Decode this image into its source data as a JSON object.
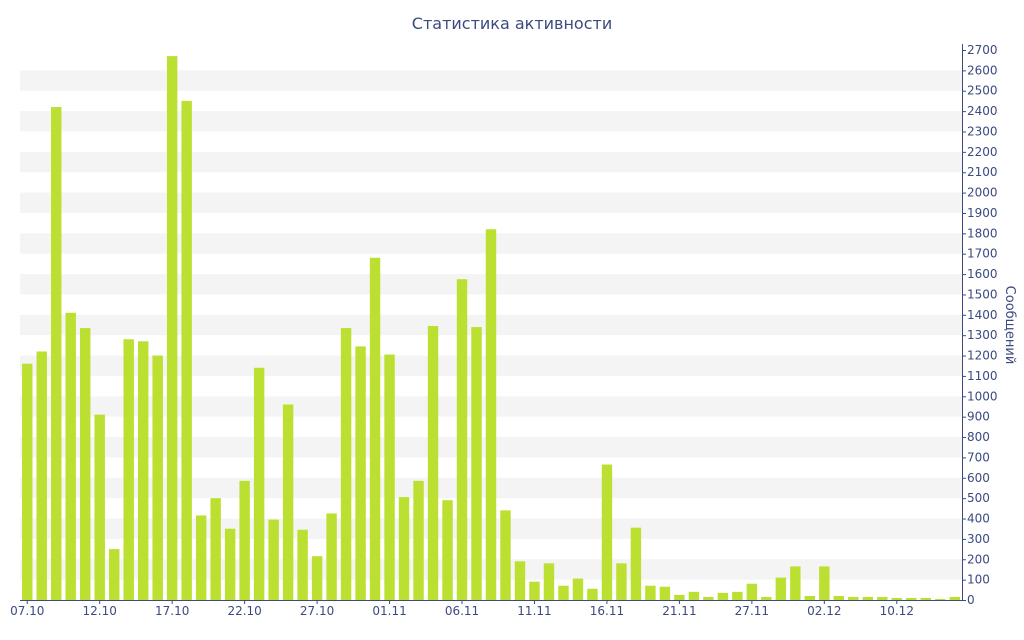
{
  "chart_data": {
    "type": "bar",
    "title": "Статистика активности",
    "xlabel": "",
    "ylabel": "Сообщений",
    "ylim": [
      0,
      2700
    ],
    "y_ticks": [
      0,
      100,
      200,
      300,
      400,
      500,
      600,
      700,
      800,
      900,
      1000,
      1100,
      1200,
      1300,
      1400,
      1500,
      1600,
      1700,
      1800,
      1900,
      2000,
      2100,
      2200,
      2300,
      2400,
      2500,
      2600,
      2700
    ],
    "y_axis_side": "right",
    "grid": "alternating horizontal bands",
    "x_tick_labels": [
      "07.10",
      "12.10",
      "17.10",
      "22.10",
      "27.10",
      "01.11",
      "06.11",
      "11.11",
      "16.11",
      "21.11",
      "27.11",
      "02.12",
      "10.12"
    ],
    "bar_color": "#bbe032",
    "band_color": "#f4f4f4",
    "text_color": "#3b4a80",
    "values": [
      1160,
      1220,
      2420,
      1410,
      1335,
      910,
      250,
      1280,
      1270,
      1200,
      2670,
      2450,
      415,
      500,
      350,
      585,
      1140,
      395,
      960,
      345,
      215,
      425,
      1335,
      1245,
      1680,
      1205,
      505,
      585,
      1345,
      490,
      1575,
      1340,
      1820,
      440,
      190,
      90,
      180,
      70,
      105,
      55,
      665,
      180,
      355,
      70,
      65,
      25,
      40,
      15,
      35,
      40,
      80,
      15,
      110,
      165,
      20,
      165,
      20,
      15,
      15,
      15,
      10,
      10,
      10,
      5,
      15
    ]
  }
}
